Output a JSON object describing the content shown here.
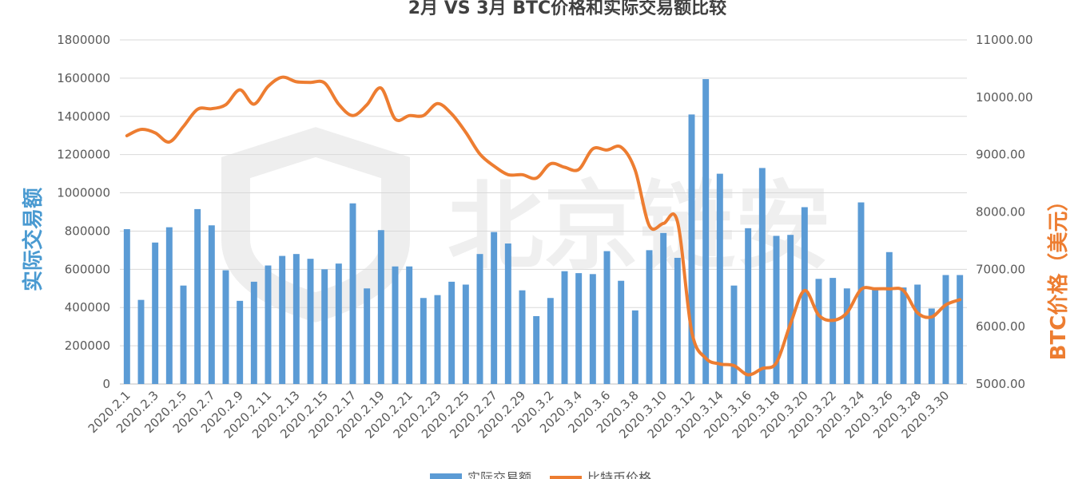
{
  "chart_data": {
    "type": "bar+line",
    "title": "2月 VS 3月 BTC价格和实际交易额比较",
    "watermark": "北京链安",
    "ylabel_left": "实际交易额",
    "ylabel_right": "BTC价格（美元）",
    "ylim_left": [
      0,
      1800000
    ],
    "yticks_left": [
      "0",
      "200000",
      "400000",
      "600000",
      "800000",
      "1000000",
      "1200000",
      "1400000",
      "1600000",
      "1800000"
    ],
    "ylim_right": [
      5000,
      11000
    ],
    "yticks_right": [
      "5000.00",
      "6000.00",
      "7000.00",
      "8000.00",
      "9000.00",
      "10000.00",
      "11000.00"
    ],
    "categories": [
      "2020.2.1",
      "2020.2.2",
      "2020.2.3",
      "2020.2.4",
      "2020.2.5",
      "2020.2.6",
      "2020.2.7",
      "2020.2.8",
      "2020.2.9",
      "2020.2.10",
      "2020.2.11",
      "2020.2.12",
      "2020.2.13",
      "2020.2.14",
      "2020.2.15",
      "2020.2.16",
      "2020.2.17",
      "2020.2.18",
      "2020.2.19",
      "2020.2.20",
      "2020.2.21",
      "2020.2.22",
      "2020.2.23",
      "2020.2.24",
      "2020.2.25",
      "2020.2.26",
      "2020.2.27",
      "2020.2.28",
      "2020.2.29",
      "2020.3.1",
      "2020.3.2",
      "2020.3.3",
      "2020.3.4",
      "2020.3.5",
      "2020.3.6",
      "2020.3.7",
      "2020.3.8",
      "2020.3.9",
      "2020.3.10",
      "2020.3.11",
      "2020.3.12",
      "2020.3.13",
      "2020.3.14",
      "2020.3.15",
      "2020.3.16",
      "2020.3.17",
      "2020.3.18",
      "2020.3.19",
      "2020.3.20",
      "2020.3.21",
      "2020.3.22",
      "2020.3.23",
      "2020.3.24",
      "2020.3.25",
      "2020.3.26",
      "2020.3.27",
      "2020.3.28",
      "2020.3.29",
      "2020.3.30",
      "2020.3.31"
    ],
    "xtick_labels": [
      "2020.2.1",
      "2020.2.3",
      "2020.2.5",
      "2020.2.7",
      "2020.2.9",
      "2020.2.11",
      "2020.2.13",
      "2020.2.15",
      "2020.2.17",
      "2020.2.19",
      "2020.2.21",
      "2020.2.23",
      "2020.2.25",
      "2020.2.27",
      "2020.2.29",
      "2020.3.2",
      "2020.3.4",
      "2020.3.6",
      "2020.3.8",
      "2020.3.10",
      "2020.3.12",
      "2020.3.14",
      "2020.3.16",
      "2020.3.18",
      "2020.3.20",
      "2020.3.22",
      "2020.3.24",
      "2020.3.26",
      "2020.3.28",
      "2020.3.30"
    ],
    "series": [
      {
        "name": "实际交易额",
        "type": "bar",
        "color": "#5b9bd5",
        "axis": "left",
        "values": [
          810000,
          440000,
          740000,
          820000,
          515000,
          915000,
          830000,
          595000,
          435000,
          535000,
          620000,
          670000,
          680000,
          655000,
          600000,
          630000,
          945000,
          500000,
          805000,
          615000,
          615000,
          450000,
          465000,
          535000,
          520000,
          680000,
          795000,
          735000,
          490000,
          355000,
          450000,
          590000,
          580000,
          575000,
          695000,
          540000,
          385000,
          700000,
          790000,
          660000,
          1410000,
          1595000,
          1100000,
          515000,
          815000,
          1130000,
          775000,
          780000,
          925000,
          550000,
          555000,
          500000,
          950000,
          495000,
          690000,
          505000,
          520000,
          395000,
          570000,
          570000
        ]
      },
      {
        "name": "比特币价格",
        "type": "line",
        "color": "#ed7d31",
        "axis": "right",
        "values": [
          9330,
          9440,
          9380,
          9220,
          9490,
          9790,
          9800,
          9870,
          10130,
          9880,
          10190,
          10350,
          10270,
          10260,
          10250,
          9880,
          9680,
          9870,
          10160,
          9620,
          9680,
          9680,
          9890,
          9710,
          9390,
          9010,
          8800,
          8650,
          8650,
          8590,
          8840,
          8780,
          8740,
          9100,
          9080,
          9130,
          8730,
          7760,
          7800,
          7830,
          5920,
          5450,
          5350,
          5320,
          5160,
          5270,
          5370,
          6050,
          6630,
          6200,
          6110,
          6240,
          6650,
          6660,
          6660,
          6630,
          6240,
          6170,
          6380,
          6470
        ]
      }
    ]
  }
}
